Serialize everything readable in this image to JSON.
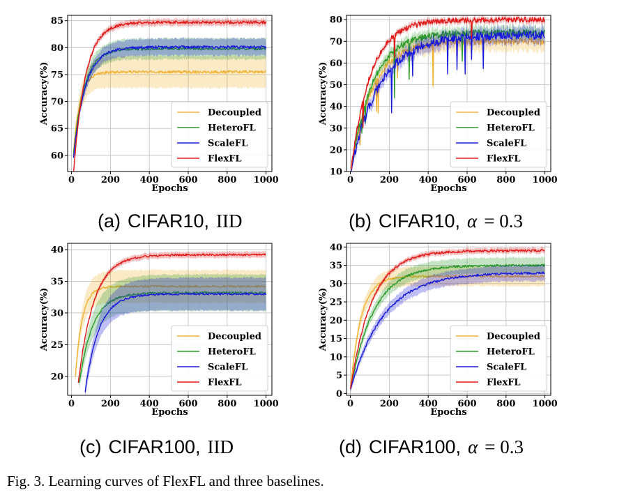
{
  "figure_caption": "Fig. 3.  Learning curves of FlexFL and three baselines.",
  "colors": {
    "Decoupled": "#f2b233",
    "HeteroFL": "#2b9a2b",
    "ScaleFL": "#1a1adb",
    "FlexFL": "#e01818"
  },
  "chart_data": [
    {
      "id": "a",
      "type": "line",
      "subcaption": {
        "label": "(a)",
        "dataset": "CIFAR10,",
        "setting": "IID"
      },
      "xlabel": "Epochs",
      "ylabel": "Accuracy(%)",
      "xlim": [
        -20,
        1030
      ],
      "ylim": [
        57,
        86
      ],
      "xticks": [
        0,
        200,
        400,
        600,
        800,
        1000
      ],
      "yticks": [
        60,
        65,
        70,
        75,
        80,
        85
      ],
      "grid": true,
      "legend_position": "lower-right",
      "series": [
        {
          "name": "Decoupled",
          "start": 10,
          "y0": 60.5,
          "final": 75.5,
          "tau": 35,
          "band": 2.8,
          "noise": 0.25,
          "spikes": 0
        },
        {
          "name": "HeteroFL",
          "start": 10,
          "y0": 60.0,
          "final": 79.8,
          "tau": 55,
          "band": 1.8,
          "noise": 0.25,
          "spikes": 0
        },
        {
          "name": "ScaleFL",
          "start": 10,
          "y0": 59.5,
          "final": 80.1,
          "tau": 60,
          "band": 1.4,
          "noise": 0.25,
          "spikes": 0
        },
        {
          "name": "FlexFL",
          "start": 10,
          "y0": 56.5,
          "final": 84.7,
          "tau": 60,
          "band": 0.5,
          "noise": 0.25,
          "spikes": 0
        }
      ]
    },
    {
      "id": "b",
      "type": "line",
      "subcaption": {
        "label": "(b)",
        "dataset": "CIFAR10,",
        "setting_prefix": "α",
        "setting_value": "= 0.3"
      },
      "xlabel": "Epochs",
      "ylabel": "Accuracy(%)",
      "xlim": [
        -20,
        1030
      ],
      "ylim": [
        10,
        82
      ],
      "xticks": [
        0,
        200,
        400,
        600,
        800,
        1000
      ],
      "yticks": [
        10,
        20,
        30,
        40,
        50,
        60,
        70,
        80
      ],
      "grid": true,
      "legend_position": "lower-right",
      "series": [
        {
          "name": "Decoupled",
          "start": 5,
          "y0": 12,
          "final": 70,
          "tau": 110,
          "band": 3.5,
          "noise": 1.5,
          "spikes": 4
        },
        {
          "name": "HeteroFL",
          "start": 5,
          "y0": 12,
          "final": 74,
          "tau": 110,
          "band": 2.0,
          "noise": 1.5,
          "spikes": 5
        },
        {
          "name": "ScaleFL",
          "start": 5,
          "y0": 12,
          "final": 73,
          "tau": 150,
          "band": 2.5,
          "noise": 2.0,
          "spikes": 9
        },
        {
          "name": "FlexFL",
          "start": 5,
          "y0": 12,
          "final": 80,
          "tau": 100,
          "band": 0.8,
          "noise": 1.2,
          "spikes": 4
        }
      ]
    },
    {
      "id": "c",
      "type": "line",
      "subcaption": {
        "label": "(c)",
        "dataset": "CIFAR100,",
        "setting": "IID"
      },
      "xlabel": "Epochs",
      "ylabel": "Accuracy(%)",
      "xlim": [
        -20,
        1030
      ],
      "ylim": [
        17,
        41
      ],
      "xticks": [
        0,
        200,
        400,
        600,
        800,
        1000
      ],
      "yticks": [
        20,
        25,
        30,
        35,
        40
      ],
      "grid": true,
      "legend_position": "lower-right",
      "series": [
        {
          "name": "Decoupled",
          "start": 20,
          "y0": 20,
          "final": 34.2,
          "tau": 35,
          "band": 2.5,
          "noise": 0.15,
          "spikes": 0
        },
        {
          "name": "HeteroFL",
          "start": 40,
          "y0": 19,
          "final": 33.2,
          "tau": 70,
          "band": 2.8,
          "noise": 0.15,
          "spikes": 0
        },
        {
          "name": "ScaleFL",
          "start": 70,
          "y0": 17.5,
          "final": 33.0,
          "tau": 70,
          "band": 2.5,
          "noise": 0.15,
          "spikes": 0
        },
        {
          "name": "FlexFL",
          "start": 35,
          "y0": 19,
          "final": 39.2,
          "tau": 80,
          "band": 0.4,
          "noise": 0.15,
          "spikes": 0
        }
      ]
    },
    {
      "id": "d",
      "type": "line",
      "subcaption": {
        "label": "(d)",
        "dataset": "CIFAR100,",
        "setting_prefix": "α",
        "setting_value": "= 0.3"
      },
      "xlabel": "Epochs",
      "ylabel": "Accuracy(%)",
      "xlim": [
        -20,
        1030
      ],
      "ylim": [
        -0.5,
        41
      ],
      "xticks": [
        0,
        200,
        400,
        600,
        800,
        1000
      ],
      "yticks": [
        0,
        5,
        10,
        15,
        20,
        25,
        30,
        35,
        40
      ],
      "grid": true,
      "legend_position": "lower-right",
      "series": [
        {
          "name": "Decoupled",
          "start": 0,
          "y0": 1,
          "final": 32,
          "tau": 55,
          "band": 2.5,
          "noise": 0.3,
          "spikes": 0
        },
        {
          "name": "HeteroFL",
          "start": 0,
          "y0": 1,
          "final": 35,
          "tau": 120,
          "band": 2.0,
          "noise": 0.3,
          "spikes": 0
        },
        {
          "name": "ScaleFL",
          "start": 0,
          "y0": 1,
          "final": 33,
          "tau": 170,
          "band": 2.0,
          "noise": 0.3,
          "spikes": 0
        },
        {
          "name": "FlexFL",
          "start": 0,
          "y0": 1,
          "final": 39,
          "tau": 110,
          "band": 0.6,
          "noise": 0.3,
          "spikes": 0
        }
      ]
    }
  ]
}
